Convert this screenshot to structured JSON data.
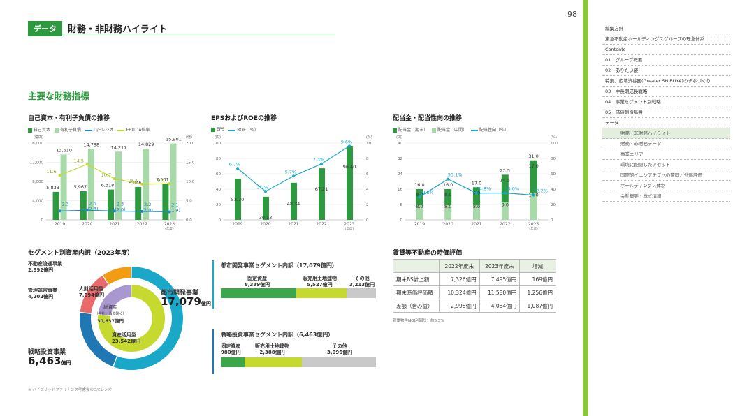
{
  "header": {
    "tag": "データ",
    "title": "財務・非財務ハイライト",
    "page": "98"
  },
  "section_title": "主要な財務指標",
  "nav": {
    "items": [
      "編集方針",
      "東急不動産ホールディングスグループの理念体系",
      "Contents",
      "01　グループ概要",
      "02　ありたい姿",
      "特集：広域渋谷圏(Greater SHIBUYA)のまちづくり",
      "03　中長期成長戦略",
      "04　事業セグメント別戦略",
      "05　価値創造基盤",
      "データ"
    ],
    "sub": [
      "財務・非財務ハイライト",
      "財務・非財務データ",
      "事業エリア",
      "環境に配慮したアセット",
      "国際的イニシアチブへの賛同／外部評価",
      "ホールディングス体制",
      "会社概要・株式情報"
    ]
  },
  "chart_data": [
    {
      "type": "bar",
      "title": "自己資本・有利子負債の推移",
      "legend": [
        "自己資本",
        "有利子負債",
        "D/Eレシオ",
        "EBITDA倍率"
      ],
      "units_left": "(億円)",
      "units_right": "(倍)",
      "categories": [
        "2019",
        "2020",
        "2021",
        "2022",
        "2023"
      ],
      "cat_suffix": "(年度)",
      "ylim": [
        0,
        16000
      ],
      "y2lim": [
        0,
        20
      ],
      "yticks": [
        "0",
        "4,000",
        "8,000",
        "12,000",
        "16,000"
      ],
      "y2ticks": [
        "0.0",
        "5.0",
        "10.0",
        "15.0",
        "20.0"
      ],
      "series": [
        {
          "name": "自己資本",
          "values": [
            5833,
            5967,
            6318,
            6846,
            7501
          ],
          "labels": [
            "5,833",
            "5,967",
            "6,318",
            "6,846",
            "7,501"
          ]
        },
        {
          "name": "有利子負債",
          "values": [
            13610,
            14788,
            14217,
            14829,
            15901
          ],
          "labels": [
            "13,610",
            "14,788",
            "14,217",
            "14,829",
            "15,901"
          ]
        },
        {
          "name": "D/Eレシオ",
          "values": [
            2.3,
            2.5,
            2.3,
            2.2,
            2.1
          ],
          "labels": [
            "2.3",
            "2.5\n(2.3)",
            "2.3\n(2.0)",
            "2.2\n(2.0)",
            "2.1\n(1.9)"
          ]
        },
        {
          "name": "EBITDA倍率",
          "values": [
            11.6,
            14.5,
            10.7,
            9.3,
            9.4
          ],
          "labels": [
            "11.6",
            "14.5",
            "10.7",
            "9.3",
            "9.4"
          ]
        }
      ]
    },
    {
      "type": "bar",
      "title": "EPSおよびROEの推移",
      "legend": [
        "EPS",
        "ROE（%）"
      ],
      "units_left": "(円)",
      "units_right": "(%)",
      "categories": [
        "2019",
        "2020",
        "2021",
        "2022",
        "2023"
      ],
      "cat_suffix": "(年度)",
      "ylim": [
        0,
        100
      ],
      "y2lim": [
        0,
        10
      ],
      "yticks": [
        "0",
        "20",
        "40",
        "60",
        "80",
        "100"
      ],
      "y2ticks": [
        "0",
        "2",
        "4",
        "6",
        "8",
        "10"
      ],
      "series": [
        {
          "name": "EPS",
          "values": [
            53.7,
            30.13,
            48.34,
            67.21,
            96.4
          ],
          "labels": [
            "53.70",
            "30.13",
            "48.34",
            "67.21",
            "96.40"
          ]
        },
        {
          "name": "ROE（%）",
          "values": [
            6.7,
            3.7,
            5.7,
            7.3,
            9.6
          ],
          "labels": [
            "6.7%",
            "3.7%",
            "5.7%",
            "7.3%",
            "9.6%"
          ]
        }
      ]
    },
    {
      "type": "bar",
      "title": "配当金・配当性向の推移",
      "legend": [
        "配当金（期末）",
        "配当金（中間）",
        "配当性向（%）"
      ],
      "units_left": "(円)",
      "units_right": "(%)",
      "categories": [
        "2019",
        "2020",
        "2021",
        "2022",
        "2023"
      ],
      "cat_suffix": "(年度)",
      "ylim": [
        0,
        40
      ],
      "y2lim": [
        0,
        100
      ],
      "yticks": [
        "0",
        "8",
        "16",
        "24",
        "32",
        "40"
      ],
      "y2ticks": [
        "0",
        "20",
        "40",
        "60",
        "80",
        "100"
      ],
      "series": [
        {
          "name": "配当金（期末）",
          "values": [
            8.0,
            8.0,
            8.0,
            9.0,
            14.0
          ],
          "labels": [
            "8.0",
            "8.0",
            "8.0",
            "9.0",
            "14.0"
          ]
        },
        {
          "name": "配当金（中間）",
          "values": [
            8.0,
            8.0,
            9.0,
            14.5,
            17.0
          ],
          "labels": [
            "8.0",
            "8.0",
            "9.0",
            "14.5",
            "17.0"
          ]
        },
        {
          "name": "配当性向（%）",
          "values": [
            29.8,
            53.1,
            34.8,
            35.0,
            32.2
          ],
          "labels": [
            "29.8%",
            "53.1%",
            "34.8%",
            "35.0%",
            "32.2%"
          ]
        }
      ],
      "totals": [
        "16.0",
        "16.0",
        "17.0",
        "23.5",
        "31.0"
      ]
    }
  ],
  "segment": {
    "title": "セグメント別資産内訳（2023年度）",
    "center": [
      "総資産",
      "（全社／消去除く）",
      "30,637億円"
    ],
    "labels": {
      "ryutsu": "不動産流通事業\n2,892億円",
      "kanri": "管理運営事業\n4,202億円",
      "senryaku_name": "戦略投資事業",
      "senryaku_val": "6,463",
      "city_name": "都市開発事業",
      "city_val": "17,079",
      "unit": "億円",
      "jinzai": "人財活用型\n7,094億円",
      "shisan": "資産活用型\n23,542億円"
    }
  },
  "urban": {
    "title": "都市開発事業セグメント内訳（17,079億円）",
    "items": [
      "固定資産\n8,339億円",
      "販売用土地建物\n5,527億円",
      "その他\n3,213億円"
    ]
  },
  "strategic": {
    "title": "戦略投資事業セグメント内訳（6,463億円）",
    "items": [
      "固定資産\n980億円",
      "販売用土地建物\n2,388億円",
      "その他\n3,096億円"
    ]
  },
  "rental": {
    "title": "賃貸等不動産の時価評価",
    "headers": [
      "",
      "2022年度末",
      "2023年度末",
      "増減"
    ],
    "rows": [
      [
        "期末BS計上額",
        "7,326億円",
        "7,495億円",
        "169億円"
      ],
      [
        "期末時価評価額",
        "10,324億円",
        "11,580億円",
        "1,256億円"
      ],
      [
        "差額（含み益）",
        "2,998億円",
        "4,084億円",
        "1,087億円"
      ]
    ],
    "note": "稼働物件NOI利回り：約5.5%"
  },
  "footnote": "※ ハイブリッドファイナンス考慮後のD/Eレシオ",
  "colors": {
    "green": "#2e9a3f",
    "lightgreen": "#a8d9a8",
    "lime": "#c6d92e",
    "blue": "#1f88c8",
    "cyan": "#1aa8c8",
    "orange": "#f39c12",
    "red": "#e86a6a",
    "purple": "#a998cf",
    "gray": "#c9c9c9"
  }
}
